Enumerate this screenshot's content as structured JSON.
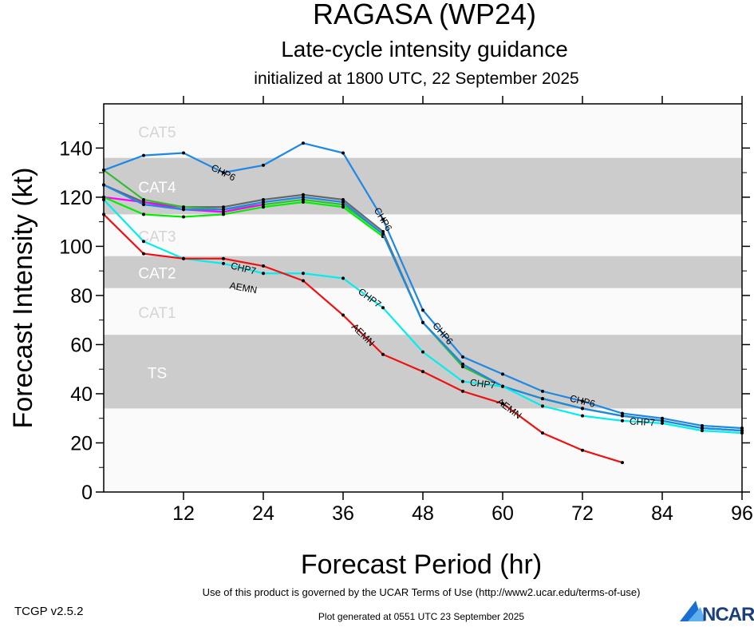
{
  "header": {
    "title": "RAGASA (WP24)",
    "subtitle": "Late-cycle intensity guidance",
    "init": "initialized at 1800 UTC, 22 September 2025"
  },
  "footer": {
    "version": "TCGP v2.5.2",
    "terms": "Use of this product is governed by the UCAR Terms of Use (http://www2.ucar.edu/terms-of-use)",
    "generated": "Plot generated at 0551 UTC   23 September 2025",
    "logo": "NCAR"
  },
  "chart_data": {
    "type": "line",
    "xlabel": "Forecast Period (hr)",
    "ylabel": "Forecast Intensity (kt)",
    "xlim": [
      0,
      96
    ],
    "ylim": [
      0,
      158
    ],
    "xticks": [
      12,
      24,
      36,
      48,
      60,
      72,
      84,
      96
    ],
    "yticks": [
      0,
      20,
      40,
      60,
      80,
      100,
      120,
      140
    ],
    "grid": false,
    "bands": [
      {
        "label": "TS",
        "from": 34,
        "to": 64,
        "shaded": true
      },
      {
        "label": "CAT1",
        "from": 64,
        "to": 83,
        "shaded": false
      },
      {
        "label": "CAT2",
        "from": 83,
        "to": 96,
        "shaded": true
      },
      {
        "label": "CAT3",
        "from": 96,
        "to": 113,
        "shaded": false
      },
      {
        "label": "CAT4",
        "from": 113,
        "to": 136,
        "shaded": true
      },
      {
        "label": "CAT5",
        "from": 136,
        "to": 158,
        "shaded": false
      }
    ],
    "x": [
      0,
      6,
      12,
      18,
      24,
      30,
      36,
      42,
      48,
      54,
      60,
      66,
      72,
      78,
      84,
      90,
      96
    ],
    "series": [
      {
        "color": "#666666",
        "values": [
          125,
          118,
          116,
          116,
          119,
          121,
          119,
          106,
          69,
          52,
          43,
          38,
          34,
          31,
          29,
          26,
          25
        ]
      },
      {
        "color": "#33bb33",
        "values": [
          131,
          119,
          116,
          115,
          117,
          119,
          117,
          105,
          69,
          51,
          43,
          38,
          34,
          31,
          29,
          26,
          25
        ]
      },
      {
        "color": "#ff00ff",
        "values": [
          120,
          118,
          115,
          114,
          117,
          null,
          null,
          null,
          null,
          null,
          null,
          null,
          null,
          null,
          null,
          null,
          null
        ]
      },
      {
        "color": "#00ee00",
        "values": [
          120,
          113,
          112,
          113,
          116,
          118,
          116,
          104,
          null,
          null,
          null,
          null,
          null,
          null,
          null,
          null,
          null
        ]
      },
      {
        "color": "#1e88e5",
        "values": [
          125,
          117,
          115,
          115,
          118,
          120,
          118,
          105,
          69,
          52,
          43,
          38,
          34,
          31,
          29,
          26,
          25
        ]
      },
      {
        "name": "CHP6",
        "color": "#1e88e5",
        "values": [
          131,
          137,
          138,
          130,
          133,
          142,
          138,
          111,
          74,
          55,
          48,
          41,
          37,
          32,
          30,
          27,
          26
        ],
        "label_at": [
          18,
          42,
          51,
          72
        ]
      },
      {
        "name": "CHP7",
        "color": "#00eeee",
        "values": [
          119,
          102,
          95,
          93,
          89,
          89,
          87,
          75,
          57,
          45,
          43,
          35,
          31,
          29,
          28,
          25,
          24
        ],
        "label_at": [
          21,
          40,
          57,
          81
        ]
      },
      {
        "name": "AEMN",
        "color": "#ee1111",
        "values": [
          113,
          97,
          95,
          95,
          92,
          86,
          72,
          56,
          49,
          41,
          36,
          24,
          17,
          12,
          null,
          null,
          null
        ],
        "label_at": [
          21,
          39,
          61
        ]
      }
    ]
  }
}
